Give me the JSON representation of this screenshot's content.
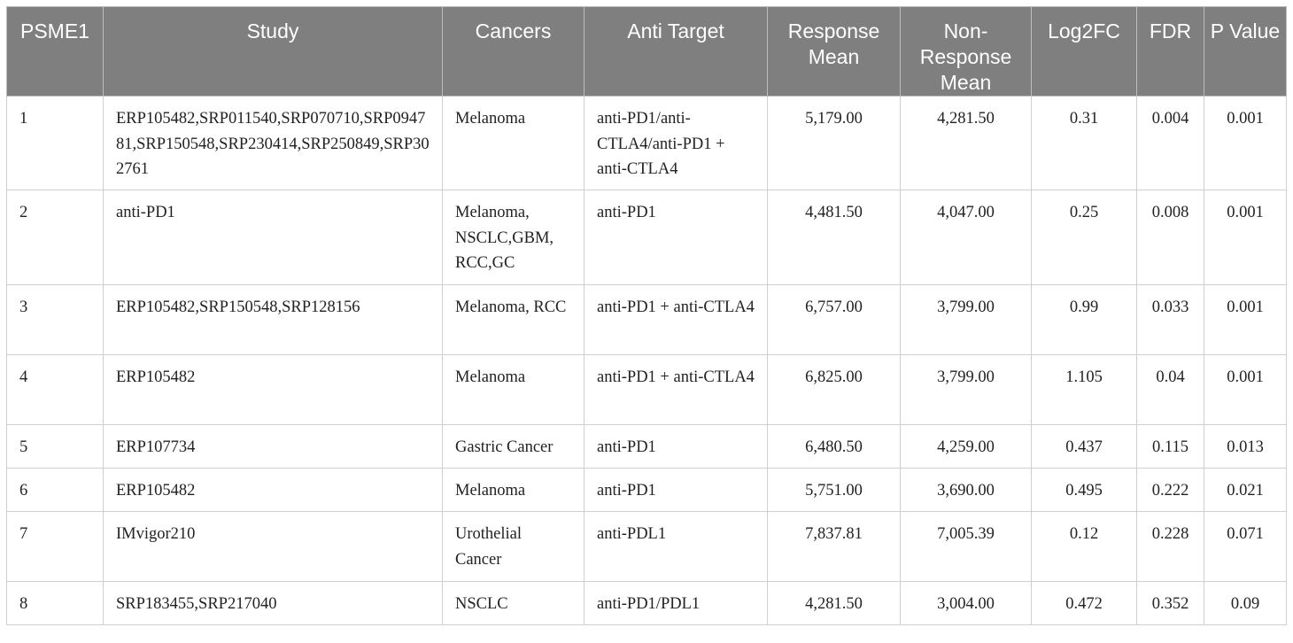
{
  "table": {
    "headers": [
      "PSME1",
      "Study",
      "Cancers",
      "Anti Target",
      "Response Mean",
      "Non-Response Mean",
      "Log2FC",
      "FDR",
      "P Value"
    ],
    "rows": [
      [
        "1",
        "ERP105482,SRP011540,SRP070710,SRP094781,SRP150548,SRP230414,SRP250849,SRP302761",
        "Melanoma",
        "anti-PD1/anti-CTLA4/anti-PD1 + anti-CTLA4",
        "5,179.00",
        "4,281.50",
        "0.31",
        "0.004",
        "0.001"
      ],
      [
        "2",
        "anti-PD1",
        "Melanoma, NSCLC,GBM, RCC,GC",
        "anti-PD1",
        "4,481.50",
        "4,047.00",
        "0.25",
        "0.008",
        "0.001"
      ],
      [
        "3",
        "ERP105482,SRP150548,SRP128156",
        "Melanoma, RCC",
        "anti-PD1 + anti-CTLA4",
        "6,757.00",
        "3,799.00",
        "0.99",
        "0.033",
        "0.001"
      ],
      [
        "4",
        "ERP105482",
        "Melanoma",
        "anti-PD1 + anti-CTLA4",
        "6,825.00",
        "3,799.00",
        "1.105",
        "0.04",
        "0.001"
      ],
      [
        "5",
        "ERP107734",
        "Gastric Cancer",
        "anti-PD1",
        "6,480.50",
        "4,259.00",
        "0.437",
        "0.115",
        "0.013"
      ],
      [
        "6",
        "ERP105482",
        "Melanoma",
        "anti-PD1",
        "5,751.00",
        "3,690.00",
        "0.495",
        "0.222",
        "0.021"
      ],
      [
        "7",
        "IMvigor210",
        "Urothelial Cancer",
        "anti-PDL1",
        "7,837.81",
        "7,005.39",
        "0.12",
        "0.228",
        "0.071"
      ],
      [
        "8",
        "SRP183455,SRP217040",
        "NSCLC",
        "anti-PD1/PDL1",
        "4,281.50",
        "3,004.00",
        "0.472",
        "0.352",
        "0.09"
      ]
    ]
  }
}
